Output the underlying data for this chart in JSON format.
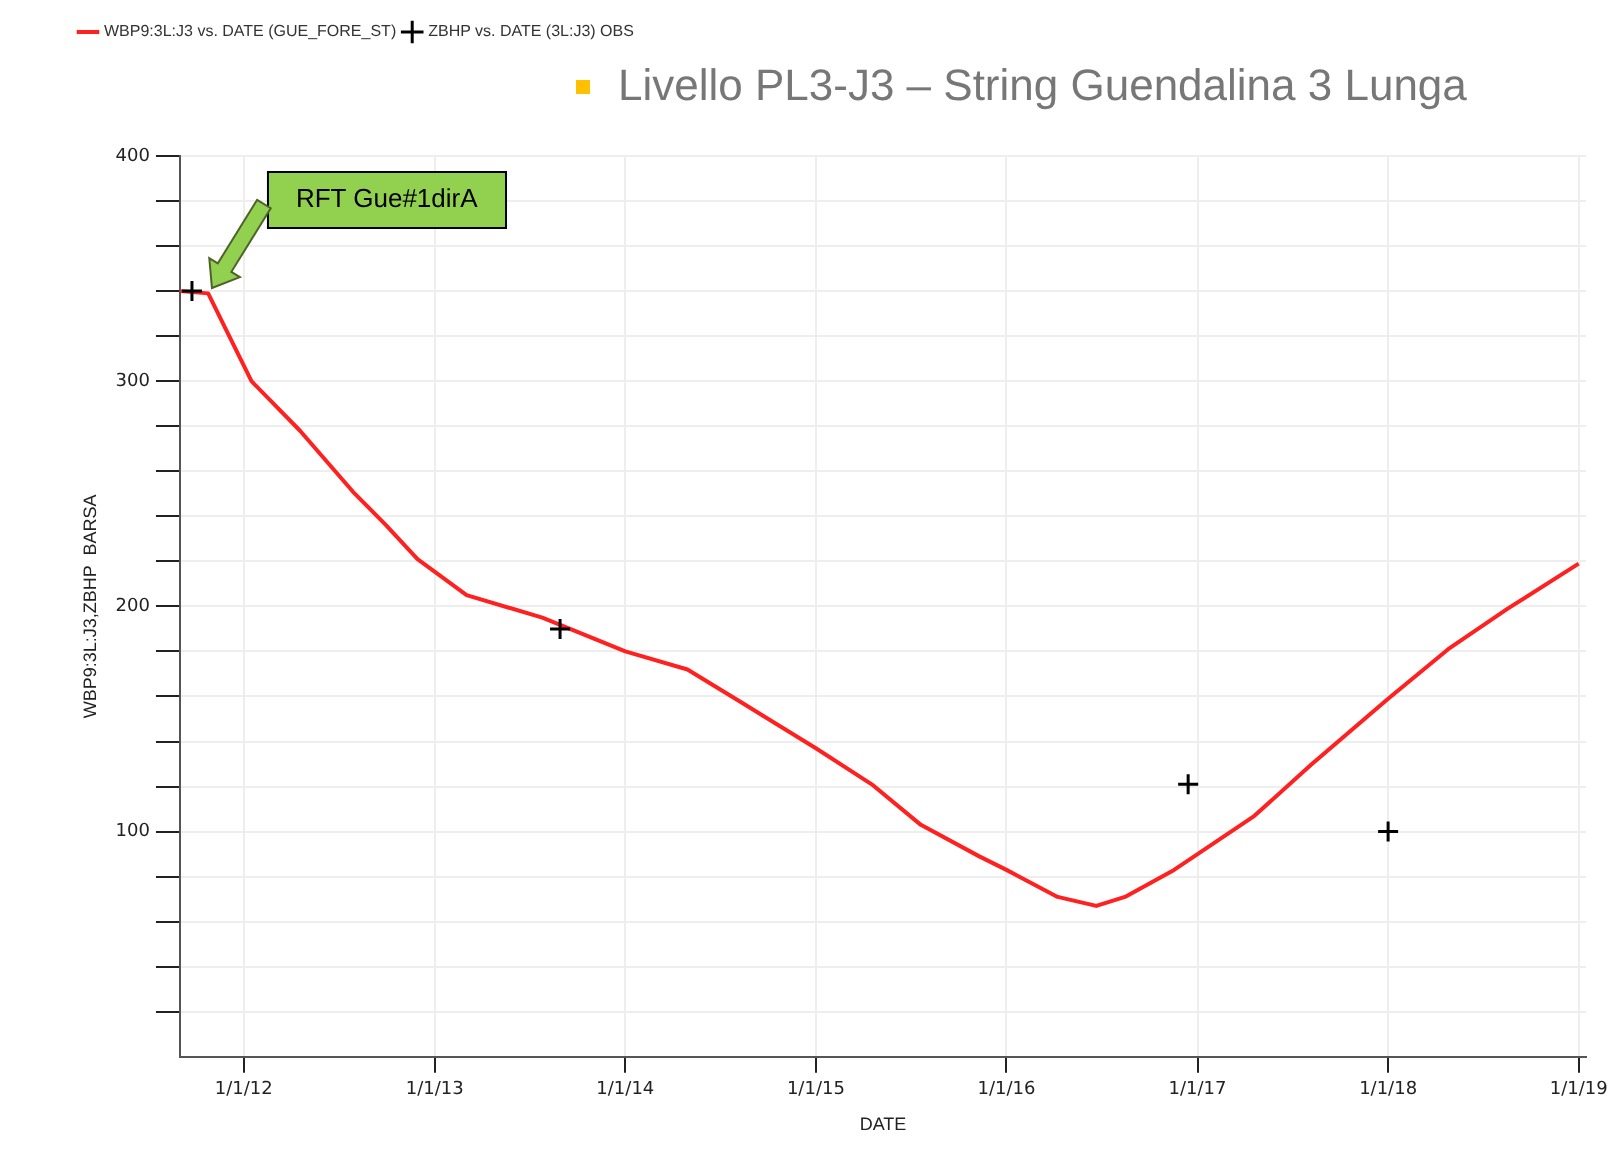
{
  "chart_data": {
    "type": "line",
    "title": "Livello PL3-J3 – String Guendalina 3 Lunga",
    "xlabel": "DATE",
    "ylabel": "WBP9:3L:J3,ZBHP  BARSA",
    "xlim": [
      "2011-09-01",
      "2019-01-15"
    ],
    "xticks": [
      {
        "value": "2012-01-01",
        "label": "1/1/12"
      },
      {
        "value": "2013-01-01",
        "label": "1/1/13"
      },
      {
        "value": "2014-01-01",
        "label": "1/1/14"
      },
      {
        "value": "2015-01-01",
        "label": "1/1/15"
      },
      {
        "value": "2016-01-01",
        "label": "1/1/16"
      },
      {
        "value": "2017-01-01",
        "label": "1/1/17"
      },
      {
        "value": "2018-01-01",
        "label": "1/1/18"
      },
      {
        "value": "2019-01-01",
        "label": "1/1/19"
      }
    ],
    "ylim": [
      0,
      400
    ],
    "yticks": [
      {
        "value": 20,
        "label": null
      },
      {
        "value": 40,
        "label": null
      },
      {
        "value": 60,
        "label": null
      },
      {
        "value": 80,
        "label": null
      },
      100,
      {
        "value": 120,
        "label": null
      },
      {
        "value": 140,
        "label": null
      },
      {
        "value": 160,
        "label": null
      },
      {
        "value": 180,
        "label": null
      },
      200,
      {
        "value": 220,
        "label": null
      },
      {
        "value": 240,
        "label": null
      },
      {
        "value": 260,
        "label": null
      },
      {
        "value": 280,
        "label": null
      },
      300,
      {
        "value": 320,
        "label": null
      },
      {
        "value": 340,
        "label": null
      },
      {
        "value": 360,
        "label": null
      },
      {
        "value": 380,
        "label": null
      },
      400
    ],
    "grid": true,
    "legend": "top left",
    "series": [
      {
        "name": "WBP9:3L:J3 vs. DATE (GUE_FORE_ST)",
        "color": "#ff2020",
        "marker": "none",
        "line_style": "solid",
        "x": [
          "2011-09-02",
          "2011-10-25",
          "2011-11-28",
          "2012-01-16",
          "2012-04-18",
          "2012-07-28",
          "2012-09-30",
          "2012-11-29",
          "2013-03-03",
          "2013-07-26",
          "2014-01-01",
          "2014-04-30",
          "2014-08-14",
          "2015-01-01",
          "2015-04-18",
          "2015-07-21",
          "2015-11-10",
          "2016-01-01",
          "2016-04-08",
          "2016-06-21",
          "2016-08-15",
          "2016-11-17",
          "2017-01-01",
          "2017-04-20",
          "2017-08-08",
          "2018-01-01",
          "2018-04-26",
          "2018-08-18",
          "2019-01-01"
        ],
        "values": [
          340,
          339,
          323,
          300,
          278,
          251,
          236,
          221,
          205,
          195,
          180,
          172,
          157,
          137,
          121,
          103,
          89,
          83,
          71,
          67,
          71,
          83,
          90,
          107,
          130,
          159,
          181,
          199,
          219
        ]
      },
      {
        "name": "ZBHP vs. DATE (3L:J3) OBS",
        "type": "scatter",
        "color": "#000000",
        "marker": "cross",
        "x": [
          "2011-09-24",
          "2013-08-29",
          "2016-12-14",
          "2018-01-01"
        ],
        "values": [
          340,
          190,
          121,
          100
        ]
      }
    ],
    "annotations": [
      "RFT Gue#1dirA"
    ]
  }
}
